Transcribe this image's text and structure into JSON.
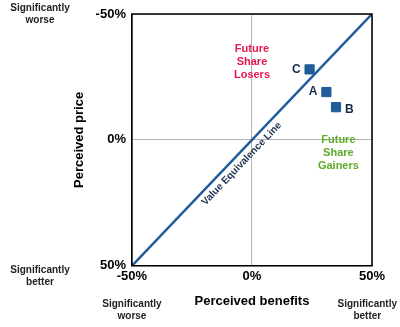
{
  "chart_data": {
    "type": "scatter",
    "x_label": "Perceived benefits",
    "y_label": "Perceived price",
    "xlim": [
      -50,
      50
    ],
    "ylim": [
      50,
      -50
    ],
    "xticks": [
      {
        "value": -50,
        "label": "-50%"
      },
      {
        "value": 0,
        "label": "0%"
      },
      {
        "value": 50,
        "label": "50%"
      }
    ],
    "yticks": [
      {
        "value": -50,
        "label": "-50%"
      },
      {
        "value": 0,
        "label": "0%"
      },
      {
        "value": 50,
        "label": "50%"
      }
    ],
    "x_end_labels": [
      "Significantly worse",
      "Significantly better"
    ],
    "y_end_labels": [
      "Significantly better",
      "Significantly worse"
    ],
    "series": [
      {
        "name": "Value Equivalence Line",
        "type": "line",
        "color": "#1f5c99",
        "x": [
          -50,
          50
        ],
        "values": [
          50,
          -50
        ]
      },
      {
        "type": "scatter",
        "marker": "square",
        "color": "#1f5c99",
        "x": [
          31,
          35,
          24
        ],
        "values": [
          -19,
          -13,
          -28
        ],
        "point_labels": [
          "A",
          "B",
          "C"
        ]
      }
    ],
    "annotations": [
      {
        "text": "Future Share Losers",
        "color": "#e8174e"
      },
      {
        "text": "Future Share Gainers",
        "color": "#5aac2a"
      }
    ],
    "grid": true
  }
}
